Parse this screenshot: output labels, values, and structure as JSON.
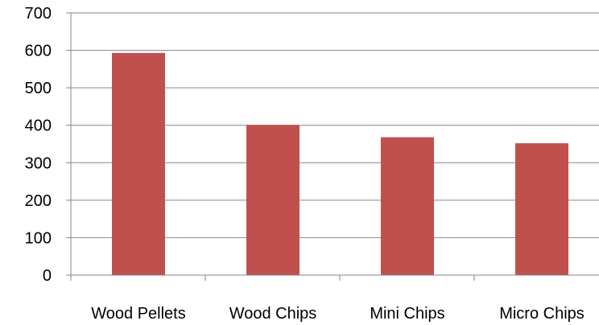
{
  "chart_data": {
    "type": "bar",
    "title": "",
    "xlabel": "",
    "ylabel": "",
    "categories": [
      "Wood Pellets",
      "Wood Chips",
      "Mini Chips",
      "Micro Chips"
    ],
    "values": [
      593,
      401,
      368,
      352
    ],
    "ylim": [
      0,
      700
    ],
    "yticks": [
      0,
      100,
      200,
      300,
      400,
      500,
      600,
      700
    ],
    "grid": true,
    "legend": "none",
    "bar_color": "#c0504d",
    "grid_color": "#868686"
  }
}
